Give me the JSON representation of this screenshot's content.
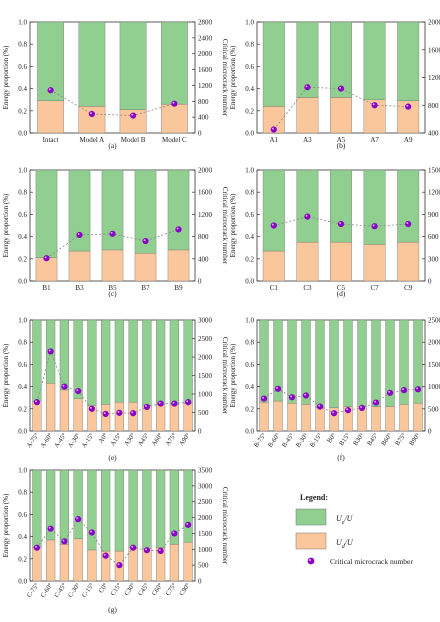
{
  "figure": {
    "colors": {
      "ud": "#f9c79b",
      "ue": "#90cf90",
      "dot": "#8a00c4",
      "dotHighlight": "#d9a3ff",
      "stroke": "#777777",
      "line": "#888888"
    },
    "legend": {
      "title": "Legend:",
      "ue_label": "U",
      "ue_sub": "e",
      "ud_label": "U",
      "ud_sub": "d",
      "over_u": "/U",
      "dot_label": "Critical microcrack number"
    }
  },
  "chart_data": [
    {
      "panel": "(a)",
      "type": "bar",
      "ylabel": "Energy proportion (%)",
      "y2label": "Critical microcrack number",
      "ylim": [
        0,
        1.0
      ],
      "y2lim": [
        0,
        2800
      ],
      "yticks": [
        "0.0",
        "0.2",
        "0.4",
        "0.6",
        "0.8",
        "1.0"
      ],
      "y2ticks": [
        "0",
        "400",
        "800",
        "1200",
        "1600",
        "2000",
        "2400",
        "2800"
      ],
      "categories": [
        "Intact",
        "Model A",
        "Model B",
        "Model C"
      ],
      "series": [
        {
          "key": "ud",
          "values": [
            0.29,
            0.24,
            0.21,
            0.26
          ]
        },
        {
          "key": "ue",
          "values": [
            0.71,
            0.76,
            0.79,
            0.74
          ]
        },
        {
          "key": "microcrack",
          "values": [
            1080,
            480,
            440,
            740
          ]
        }
      ]
    },
    {
      "panel": "(b)",
      "type": "bar",
      "ylabel": "Energy proportion (%)",
      "y2label": "Critical microcrack number",
      "ylim": [
        0,
        1.0
      ],
      "y2lim": [
        400,
        2000
      ],
      "yticks": [
        "0.0",
        "0.2",
        "0.4",
        "0.6",
        "0.8",
        "1.0"
      ],
      "y2ticks": [
        "400",
        "800",
        "1200",
        "1600",
        "2000"
      ],
      "categories": [
        "A1",
        "A3",
        "A5",
        "A7",
        "A9"
      ],
      "series": [
        {
          "key": "ud",
          "values": [
            0.24,
            0.32,
            0.32,
            0.3,
            0.29
          ]
        },
        {
          "key": "ue",
          "values": [
            0.76,
            0.68,
            0.68,
            0.7,
            0.71
          ]
        },
        {
          "key": "microcrack",
          "values": [
            450,
            1060,
            1040,
            800,
            780
          ]
        }
      ]
    },
    {
      "panel": "(c)",
      "type": "bar",
      "ylabel": "Energy proportion (%)",
      "y2label": "Critical microcrack number",
      "ylim": [
        0,
        1.0
      ],
      "y2lim": [
        0,
        2000
      ],
      "yticks": [
        "0.0",
        "0.2",
        "0.4",
        "0.6",
        "0.8",
        "1.0"
      ],
      "y2ticks": [
        "0",
        "400",
        "800",
        "1200",
        "1600",
        "2000"
      ],
      "categories": [
        "B1",
        "B3",
        "B5",
        "B7",
        "B9"
      ],
      "series": [
        {
          "key": "ud",
          "values": [
            0.21,
            0.27,
            0.28,
            0.25,
            0.28
          ]
        },
        {
          "key": "ue",
          "values": [
            0.79,
            0.73,
            0.72,
            0.75,
            0.72
          ]
        },
        {
          "key": "microcrack",
          "values": [
            410,
            830,
            850,
            720,
            930
          ]
        }
      ]
    },
    {
      "panel": "(d)",
      "type": "bar",
      "ylabel": "Energy proportion (%)",
      "y2label": "Critical microcrack number",
      "ylim": [
        0,
        1.0
      ],
      "y2lim": [
        0,
        1500
      ],
      "yticks": [
        "0.0",
        "0.2",
        "0.4",
        "0.6",
        "0.8",
        "1.0"
      ],
      "y2ticks": [
        "0",
        "300",
        "600",
        "900",
        "1200",
        "1500"
      ],
      "categories": [
        "C1",
        "C3",
        "C5",
        "C7",
        "C9"
      ],
      "series": [
        {
          "key": "ud",
          "values": [
            0.27,
            0.35,
            0.35,
            0.33,
            0.35
          ]
        },
        {
          "key": "ue",
          "values": [
            0.73,
            0.65,
            0.65,
            0.67,
            0.65
          ]
        },
        {
          "key": "microcrack",
          "values": [
            750,
            870,
            770,
            740,
            770
          ]
        }
      ]
    },
    {
      "panel": "(e)",
      "type": "bar",
      "ylabel": "Energy proportion (%)",
      "y2label": "Critical microcrack number",
      "ylim": [
        0,
        1.0
      ],
      "y2lim": [
        0,
        3000
      ],
      "yticks": [
        "0.0",
        "0.2",
        "0.4",
        "0.6",
        "0.8",
        "1.0"
      ],
      "y2ticks": [
        "0",
        "500",
        "1000",
        "1500",
        "2000",
        "2500",
        "3000"
      ],
      "categories": [
        "A-75°",
        "A-60°",
        "A-45°",
        "A-30°",
        "A-15°",
        "A0°",
        "A15°",
        "A30°",
        "A45°",
        "A60°",
        "A75°",
        "A90°"
      ],
      "series": [
        {
          "key": "ud",
          "values": [
            0.27,
            0.43,
            0.37,
            0.29,
            0.23,
            0.24,
            0.26,
            0.26,
            0.23,
            0.24,
            0.24,
            0.25
          ]
        },
        {
          "key": "ue",
          "values": [
            0.73,
            0.57,
            0.63,
            0.71,
            0.77,
            0.76,
            0.74,
            0.74,
            0.77,
            0.76,
            0.76,
            0.75
          ]
        },
        {
          "key": "microcrack",
          "values": [
            780,
            2150,
            1200,
            1080,
            600,
            460,
            490,
            480,
            650,
            740,
            740,
            780
          ]
        }
      ]
    },
    {
      "panel": "(f)",
      "type": "bar",
      "ylabel": "Energy proportion (%)",
      "y2label": "Critical microcrack number",
      "ylim": [
        0,
        1.0
      ],
      "y2lim": [
        0,
        2500
      ],
      "yticks": [
        "0.0",
        "0.2",
        "0.4",
        "0.6",
        "0.8",
        "1.0"
      ],
      "y2ticks": [
        "0",
        "500",
        "1000",
        "1500",
        "2000",
        "2500"
      ],
      "categories": [
        "B-75°",
        "B-60°",
        "B-45°",
        "B-30°",
        "B-15°",
        "B0°",
        "B15°",
        "B30°",
        "B45°",
        "B60°",
        "B75°",
        "B90°"
      ],
      "series": [
        {
          "key": "ud",
          "values": [
            0.26,
            0.27,
            0.25,
            0.24,
            0.21,
            0.21,
            0.22,
            0.22,
            0.22,
            0.22,
            0.24,
            0.25
          ]
        },
        {
          "key": "ue",
          "values": [
            0.74,
            0.73,
            0.75,
            0.76,
            0.79,
            0.79,
            0.78,
            0.78,
            0.78,
            0.78,
            0.76,
            0.75
          ]
        },
        {
          "key": "microcrack",
          "values": [
            730,
            950,
            760,
            800,
            550,
            400,
            470,
            520,
            640,
            860,
            920,
            940
          ]
        }
      ]
    },
    {
      "panel": "(g)",
      "type": "bar",
      "ylabel": "Energy proportion (%)",
      "y2label": "Critical microcrack number",
      "ylim": [
        0,
        1.0
      ],
      "y2lim": [
        0,
        3500
      ],
      "yticks": [
        "0.0",
        "0.2",
        "0.4",
        "0.6",
        "0.8",
        "1.0"
      ],
      "y2ticks": [
        "0",
        "500",
        "1000",
        "1500",
        "2000",
        "2500",
        "3000",
        "3500"
      ],
      "categories": [
        "C-75°",
        "C-60°",
        "C-45°",
        "C-30°",
        "C-15°",
        "C0°",
        "C15°",
        "C30°",
        "C45°",
        "C60°",
        "C75°",
        "C90°"
      ],
      "series": [
        {
          "key": "ud",
          "values": [
            0.3,
            0.37,
            0.33,
            0.38,
            0.28,
            0.27,
            0.27,
            0.3,
            0.29,
            0.3,
            0.33,
            0.35
          ]
        },
        {
          "key": "ue",
          "values": [
            0.7,
            0.63,
            0.67,
            0.62,
            0.72,
            0.73,
            0.73,
            0.7,
            0.71,
            0.7,
            0.67,
            0.65
          ]
        },
        {
          "key": "microcrack",
          "values": [
            1050,
            1650,
            1250,
            1950,
            1530,
            800,
            500,
            1050,
            970,
            950,
            1500,
            1770
          ]
        }
      ]
    }
  ]
}
